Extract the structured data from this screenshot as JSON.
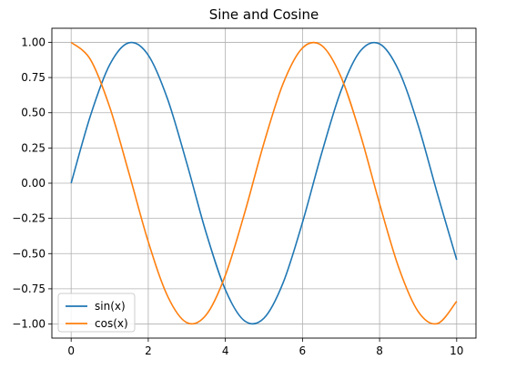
{
  "chart_data": {
    "type": "line",
    "title": "Sine and Cosine",
    "xlabel": "",
    "ylabel": "",
    "xlim": [
      -0.5,
      10.5
    ],
    "ylim": [
      -1.1,
      1.1
    ],
    "xticks": [
      0,
      2,
      4,
      6,
      8,
      10
    ],
    "yticks": [
      -1.0,
      -0.75,
      -0.5,
      -0.25,
      0.0,
      0.25,
      0.5,
      0.75,
      1.0
    ],
    "xtick_labels": [
      "0",
      "2",
      "4",
      "6",
      "8",
      "10"
    ],
    "ytick_labels": [
      "−1.00",
      "−0.75",
      "−0.50",
      "−0.25",
      "0.00",
      "0.25",
      "0.50",
      "0.75",
      "1.00"
    ],
    "grid": true,
    "legend_position": "lower-left",
    "series": [
      {
        "name": "sin(x)",
        "color": "#1f77b4",
        "x": [
          0,
          0.5,
          1,
          1.5,
          2,
          2.5,
          3,
          3.5,
          4,
          4.5,
          5,
          5.5,
          6,
          6.5,
          7,
          7.5,
          8,
          8.5,
          9,
          9.5,
          10
        ],
        "y": [
          0.0,
          0.479,
          0.841,
          0.997,
          0.909,
          0.598,
          0.141,
          -0.351,
          -0.757,
          -0.978,
          -0.959,
          -0.706,
          -0.279,
          0.215,
          0.657,
          0.938,
          0.989,
          0.798,
          0.412,
          -0.075,
          -0.544
        ]
      },
      {
        "name": "cos(x)",
        "color": "#ff7f0e",
        "x": [
          0,
          0.5,
          1,
          1.5,
          2,
          2.5,
          3,
          3.5,
          4,
          4.5,
          5,
          5.5,
          6,
          6.5,
          7,
          7.5,
          8,
          8.5,
          9,
          9.5,
          10
        ],
        "y": [
          1.0,
          0.878,
          0.54,
          0.071,
          -0.416,
          -0.801,
          -0.99,
          -0.936,
          -0.654,
          -0.211,
          0.284,
          0.709,
          0.96,
          0.977,
          0.754,
          0.347,
          -0.146,
          -0.602,
          -0.911,
          -0.997,
          -0.839
        ]
      }
    ]
  }
}
